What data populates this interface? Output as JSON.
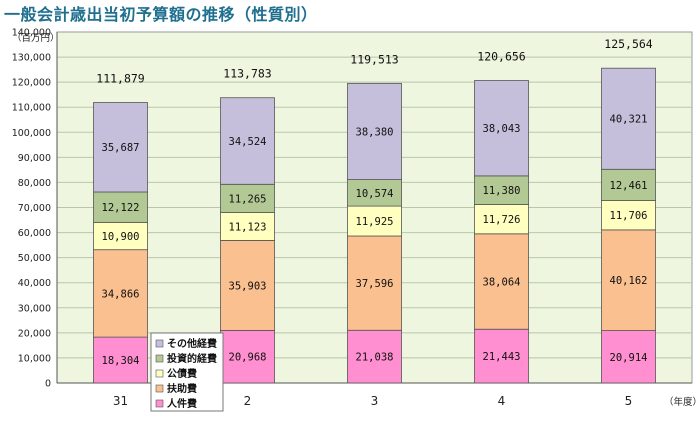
{
  "title": "一般会計歳出当初予算額の推移（性質別）",
  "chart_data": {
    "type": "bar",
    "stacked": true,
    "title": "一般会計歳出当初予算額の推移（性質別）",
    "ylabel": "（百万円）",
    "xlabel": "（年度）",
    "ylim": [
      0,
      140000
    ],
    "yticks": [
      0,
      10000,
      20000,
      30000,
      40000,
      50000,
      60000,
      70000,
      80000,
      90000,
      100000,
      110000,
      120000,
      130000,
      140000
    ],
    "ytick_labels": [
      "0",
      "10,000",
      "20,000",
      "30,000",
      "40,000",
      "50,000",
      "60,000",
      "70,000",
      "80,000",
      "90,000",
      "100,000",
      "110,000",
      "120,000",
      "130,000",
      "140,000"
    ],
    "categories": [
      "31",
      "2",
      "3",
      "4",
      "5"
    ],
    "series": [
      {
        "name": "人件費",
        "color": "#ff8fd0",
        "values": [
          18304,
          20968,
          21038,
          21443,
          20914
        ],
        "labels": [
          "18,304",
          "20,968",
          "21,038",
          "21,443",
          "20,914"
        ]
      },
      {
        "name": "扶助費",
        "color": "#fac090",
        "values": [
          34866,
          35903,
          37596,
          38064,
          40162
        ],
        "labels": [
          "34,866",
          "35,903",
          "37,596",
          "38,064",
          "40,162"
        ]
      },
      {
        "name": "公債費",
        "color": "#ffffc0",
        "values": [
          10900,
          11123,
          11925,
          11726,
          11706
        ],
        "labels": [
          "10,900",
          "11,123",
          "11,925",
          "11,726",
          "11,706"
        ]
      },
      {
        "name": "投資的経費",
        "color": "#b3c995",
        "values": [
          12122,
          11265,
          10574,
          11380,
          12461
        ],
        "labels": [
          "12,122",
          "11,265",
          "10,574",
          "11,380",
          "12,461"
        ]
      },
      {
        "name": "その他経費",
        "color": "#c5bfdc",
        "values": [
          35687,
          34524,
          38380,
          38043,
          40321
        ],
        "labels": [
          "35,687",
          "34,524",
          "38,380",
          "38,043",
          "40,321"
        ]
      }
    ],
    "totals": [
      111879,
      113783,
      119513,
      120656,
      125564
    ],
    "total_labels": [
      "111,879",
      "113,783",
      "119,513",
      "120,656",
      "125,564"
    ],
    "legend": [
      "その他経費",
      "投資的経費",
      "公債費",
      "扶助費",
      "人件費"
    ],
    "legend_position": "lower-left inside plot",
    "grid": true,
    "plot_background": "#eef6e0"
  }
}
